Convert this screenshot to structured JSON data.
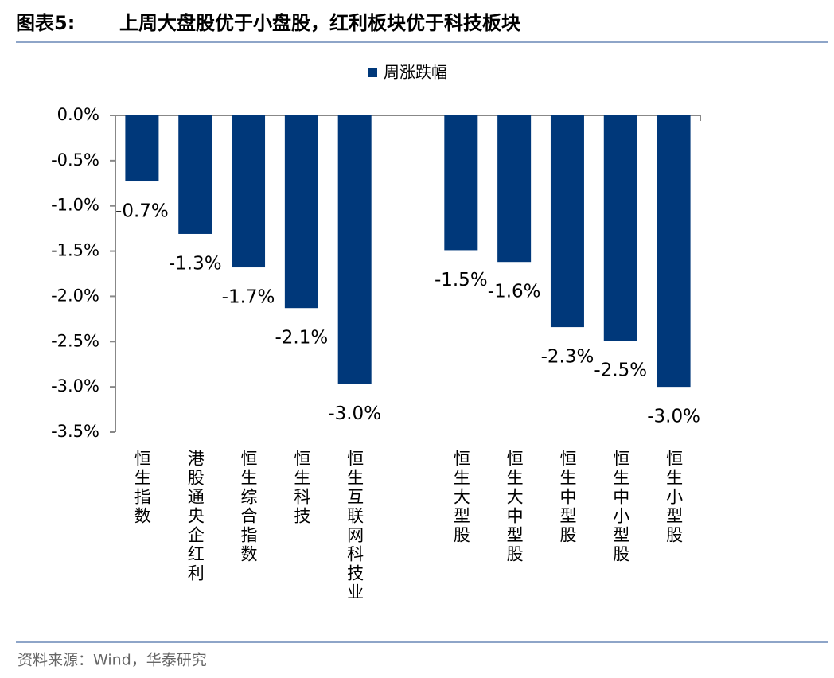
{
  "chart_data": {
    "type": "bar",
    "label": "图表5:",
    "title": "上周大盘股优于小盘股，红利板块优于科技板块",
    "source": "资料来源：Wind，华泰研究",
    "categories": [
      "恒生指数",
      "港股通央企红利",
      "恒生综合指数",
      "恒生科技",
      "恒生互联网科技业",
      null,
      "恒生大型股",
      "恒生大中型股",
      "恒生中型股",
      "恒生中小型股",
      "恒生小型股"
    ],
    "series": [
      {
        "name": "周涨跌幅",
        "color": "#00387a",
        "values": [
          -0.73,
          -1.31,
          -1.68,
          -2.13,
          -2.97,
          null,
          -1.49,
          -1.62,
          -2.34,
          -2.49,
          -3.0
        ],
        "value_labels": [
          "-0.7%",
          "-1.3%",
          "-1.7%",
          "-2.1%",
          "-3.0%",
          null,
          "-1.5%",
          "-1.6%",
          "-2.3%",
          "-2.5%",
          "-3.0%"
        ]
      }
    ],
    "ylim": [
      0,
      -3.5
    ],
    "yticks": [
      {
        "value": 0,
        "label": "0.0%"
      },
      {
        "value": -0.5,
        "label": "-0.5%"
      },
      {
        "value": -1,
        "label": "-1.0%"
      },
      {
        "value": -1.5,
        "label": "-1.5%"
      },
      {
        "value": -2,
        "label": "-2.0%"
      },
      {
        "value": -2.5,
        "label": "-2.5%"
      },
      {
        "value": -3,
        "label": "-3.0%"
      },
      {
        "value": -3.5,
        "label": "-3.5%"
      }
    ],
    "grid": false,
    "legend": "top"
  }
}
